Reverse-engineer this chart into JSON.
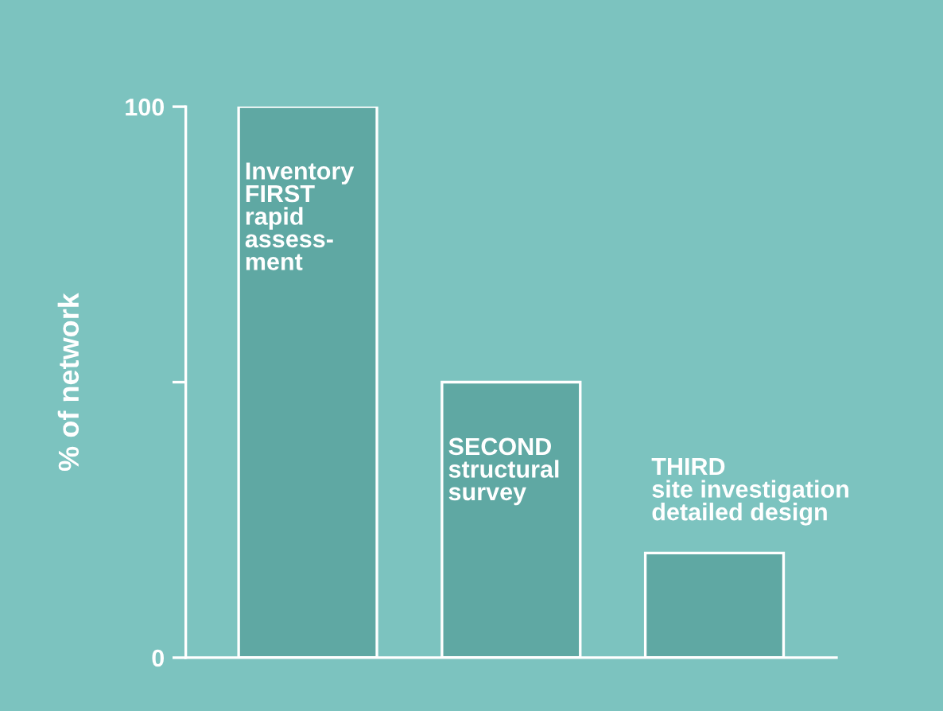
{
  "chart_data": {
    "type": "bar",
    "ylabel": "% of network",
    "categories": [
      "Inventory\nFIRST\nrapid\nassess-\nment",
      "SECOND\nstructural\nsurvey",
      "THIRD\nsite investigation\ndetailed design"
    ],
    "values": [
      100,
      50,
      19
    ],
    "color": "#5fa8a3",
    "ylim": [
      0,
      100
    ],
    "yticks": [
      0,
      {
        "value": 50,
        "label": null
      },
      100
    ],
    "grid": false
  }
}
